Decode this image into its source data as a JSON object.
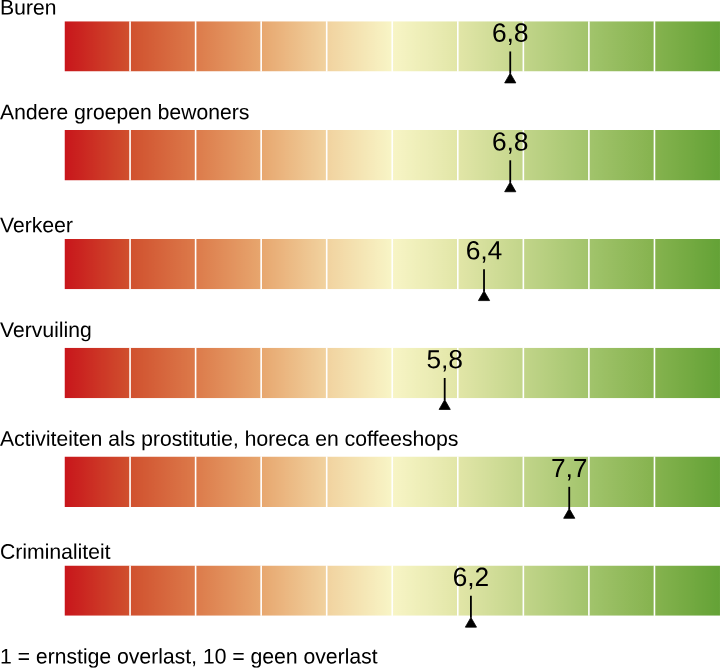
{
  "chart_data": {
    "type": "other",
    "categories": [
      "Buren",
      "Andere groepen bewoners",
      "Verkeer",
      "Vervuiling",
      "Activiteiten als prostitutie, horeca en coffeeshops",
      "Criminaliteit"
    ],
    "values": [
      6.8,
      6.8,
      6.4,
      5.8,
      7.7,
      6.2
    ],
    "value_labels": [
      "6,8",
      "6,8",
      "6,4",
      "5,8",
      "7,7",
      "6,2"
    ],
    "annotations": [
      "1 = ernstige overlast, 10 = geen overlast"
    ]
  }
}
